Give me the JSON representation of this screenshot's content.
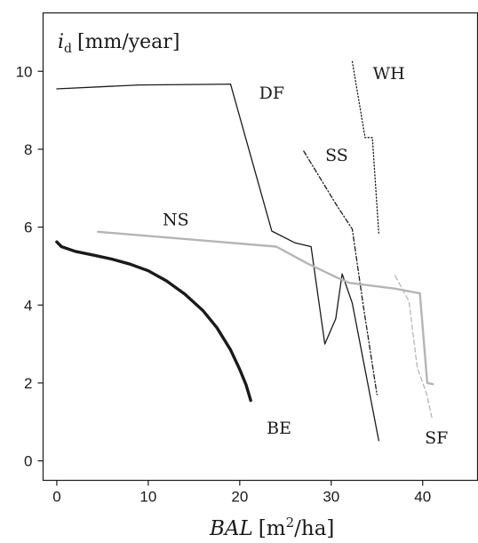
{
  "chart_data": {
    "type": "line",
    "title": "",
    "ylabel_parts": {
      "var": "i",
      "sub": "d",
      "unit": "[mm/year]"
    },
    "xlabel_parts": {
      "var": "BAL",
      "unit_pre": "[m",
      "unit_sup": "2",
      "unit_post": "/ha]"
    },
    "xlim": [
      -1.5,
      46
    ],
    "ylim": [
      -0.5,
      11.5
    ],
    "xticks": [
      0,
      10,
      20,
      30,
      40
    ],
    "yticks": [
      0,
      2,
      4,
      6,
      8,
      10
    ],
    "grid": false,
    "legend": "none (series labeled directly on plot)",
    "series": [
      {
        "name": "DF",
        "color": "#1a1a1a",
        "style": "solid",
        "width": "thin",
        "points": [
          [
            0,
            9.55
          ],
          [
            9,
            9.65
          ],
          [
            19,
            9.67
          ],
          [
            23.5,
            5.9
          ],
          [
            26,
            5.6
          ],
          [
            27.8,
            5.5
          ],
          [
            29.3,
            3.0
          ],
          [
            30.5,
            3.65
          ],
          [
            31.2,
            4.8
          ],
          [
            32.3,
            4.05
          ],
          [
            35.2,
            0.52
          ]
        ]
      },
      {
        "name": "SS",
        "color": "#1a1a1a",
        "style": "dash-dot",
        "width": "thin",
        "points": [
          [
            27,
            7.95
          ],
          [
            30.5,
            6.6
          ],
          [
            32.3,
            5.95
          ],
          [
            33.5,
            4.0
          ],
          [
            35,
            1.7
          ]
        ]
      },
      {
        "name": "WH",
        "color": "#1a1a1a",
        "style": "dotted",
        "width": "thin",
        "points": [
          [
            32.3,
            10.25
          ],
          [
            33.7,
            8.3
          ],
          [
            34.5,
            8.3
          ],
          [
            35.2,
            5.85
          ]
        ]
      },
      {
        "name": "NS",
        "color": "#b5b5b5",
        "style": "solid",
        "width": "medium",
        "points": [
          [
            4.5,
            5.88
          ],
          [
            24,
            5.5
          ],
          [
            27.3,
            5.08
          ],
          [
            30.5,
            4.72
          ],
          [
            32,
            4.57
          ],
          [
            37,
            4.42
          ],
          [
            39.7,
            4.3
          ],
          [
            40.5,
            2.0
          ],
          [
            41.1,
            1.97
          ]
        ]
      },
      {
        "name": "SF",
        "color": "#b5b5b5",
        "style": "dashed",
        "width": "thin",
        "points": [
          [
            37,
            4.75
          ],
          [
            38.5,
            4.1
          ],
          [
            39.4,
            2.4
          ],
          [
            40.4,
            1.75
          ],
          [
            41,
            1.12
          ]
        ]
      },
      {
        "name": "BE",
        "color": "#1a1a1a",
        "style": "solid",
        "width": "thick",
        "points": [
          [
            0,
            5.62
          ],
          [
            0.5,
            5.5
          ],
          [
            2,
            5.38
          ],
          [
            4,
            5.28
          ],
          [
            6,
            5.18
          ],
          [
            8,
            5.05
          ],
          [
            10,
            4.88
          ],
          [
            12,
            4.62
          ],
          [
            14,
            4.28
          ],
          [
            16,
            3.85
          ],
          [
            17.5,
            3.42
          ],
          [
            19,
            2.85
          ],
          [
            20,
            2.35
          ],
          [
            20.7,
            1.95
          ],
          [
            21.2,
            1.55
          ]
        ]
      }
    ],
    "series_label_positions": {
      "DF": [
        23.5,
        9.3
      ],
      "SS": [
        30.6,
        7.7
      ],
      "WH": [
        36.3,
        9.8
      ],
      "NS": [
        13,
        6.05
      ],
      "BE": [
        24.3,
        0.7
      ],
      "SF": [
        41.5,
        0.45
      ]
    }
  }
}
